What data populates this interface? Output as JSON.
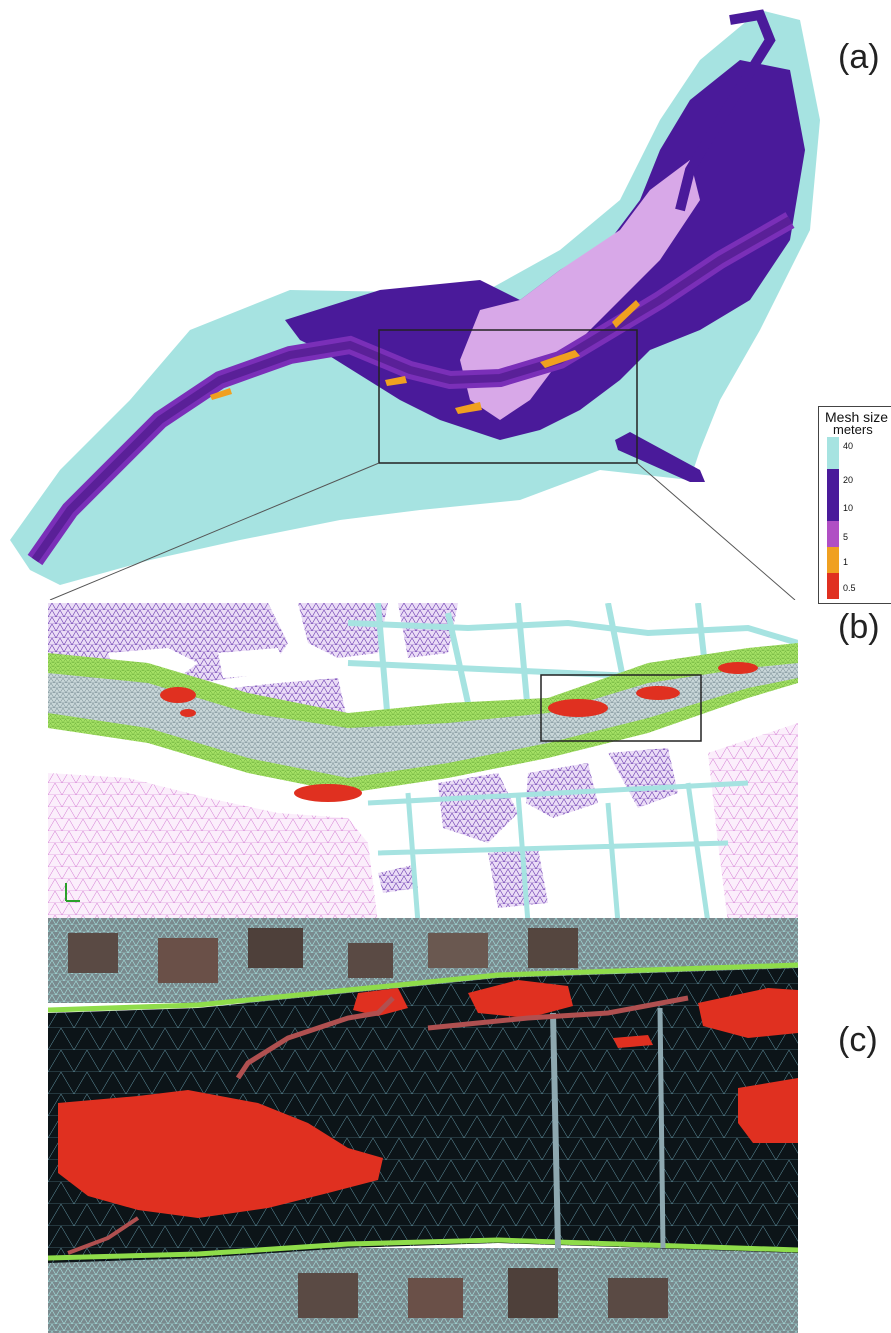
{
  "panels": {
    "a": {
      "label": "(a)"
    },
    "b": {
      "label": "(b)"
    },
    "c": {
      "label": "(c)"
    }
  },
  "legend": {
    "title": "Mesh size",
    "unit": "meters",
    "entries": [
      {
        "value": "40",
        "color": "#a6e3e1"
      },
      {
        "value": "20",
        "color": "#4a1a9a"
      },
      {
        "value": "10",
        "color": "#4a1a9a"
      },
      {
        "value": "5",
        "color": "#b04fc4"
      },
      {
        "value": "1",
        "color": "#f0a020"
      },
      {
        "value": "0.5",
        "color": "#e03020"
      }
    ]
  },
  "colors": {
    "coarse": "#a6e3e1",
    "urban": "#4a1a9a",
    "river_bank": "#9a35c9",
    "fine": "#f0a020",
    "finest": "#e03020",
    "green_band": "#8fdc4a",
    "pink_mesh": "#d070d0",
    "aerial_water": "#0c1418"
  }
}
